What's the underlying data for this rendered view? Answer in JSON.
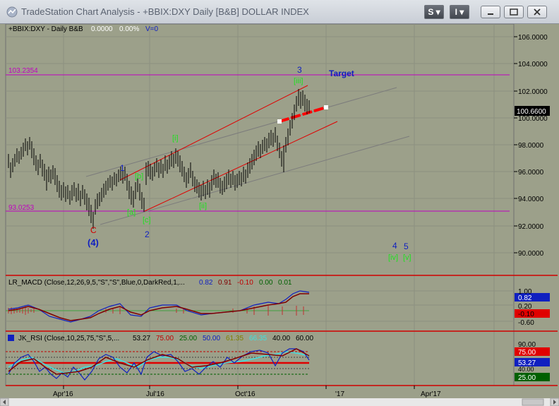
{
  "window": {
    "title": "TradeStation Chart Analysis - +BBIX:DXY Daily [B&B] DOLLAR INDEX",
    "s_menu_label": "S ▾",
    "i_menu_label": "I ▾"
  },
  "price_pane": {
    "header_symbol": "+BBIX:DXY - Daily  B&B",
    "header_values": [
      "0.0000",
      "0.00%",
      "V=0"
    ],
    "hline_labels": [
      "103.2354",
      "93.0253"
    ],
    "last_price": "100.6600",
    "axis_ticks": [
      {
        "label": "106.0000",
        "value": 106
      },
      {
        "label": "104.0000",
        "value": 104
      },
      {
        "label": "102.0000",
        "value": 102
      },
      {
        "label": "100.0000",
        "value": 100
      },
      {
        "label": "98.0000",
        "value": 98
      },
      {
        "label": "96.0000",
        "value": 96
      },
      {
        "label": "94.0000",
        "value": 94
      },
      {
        "label": "92.0000",
        "value": 92
      },
      {
        "label": "90.0000",
        "value": 90
      }
    ],
    "annotations": {
      "target": "Target",
      "wave_c": "C",
      "wave_4_major": "(4)",
      "wave_1": "1",
      "wave_2": "2",
      "wave_3": "3",
      "wave_4": "4",
      "wave_5": "5",
      "sub_i": "[i]",
      "sub_ii": "[ii]",
      "sub_iii": "[iii]",
      "sub_iv": "[iv]",
      "sub_v": "[v]",
      "sub_a": "[a]",
      "sub_b": "[b]",
      "sub_c": "[c]"
    }
  },
  "macd_pane": {
    "header": "LR_MACD (Close,12,26,9,5,\"S\",\"S\",Blue,0,DarkRed,1,...",
    "header_values": [
      "0.82",
      "0.91",
      "-0.10",
      "0.00",
      "0.01"
    ],
    "axis_labels": [
      "1.00",
      "0.82",
      "0.20",
      "-0.10",
      "-0.60"
    ]
  },
  "rsi_pane": {
    "header": "JK_RSI (Close,10,25,75,\"S\",5,...",
    "header_values": [
      "53.27",
      "75.00",
      "25.00",
      "50.00",
      "61.35",
      "66.35",
      "40.00",
      "60.00"
    ],
    "axis_labels": [
      "90.00",
      "75.00",
      "60.00",
      "53.27",
      "40.00",
      "25.00"
    ]
  },
  "x_axis": {
    "labels": [
      "Apr'16",
      "Jul'16",
      "Oct'16",
      "'17",
      "Apr'17"
    ]
  },
  "colors": {
    "chart_bg": "#9ca08a",
    "price_bars": "#000000",
    "channel": "#e00000",
    "parallel_lines": "#7c7c7c",
    "hline": "#c000c0",
    "wave_blue": "#1020c0",
    "wave_green": "#20e020",
    "wave_red": "#d00000"
  }
}
